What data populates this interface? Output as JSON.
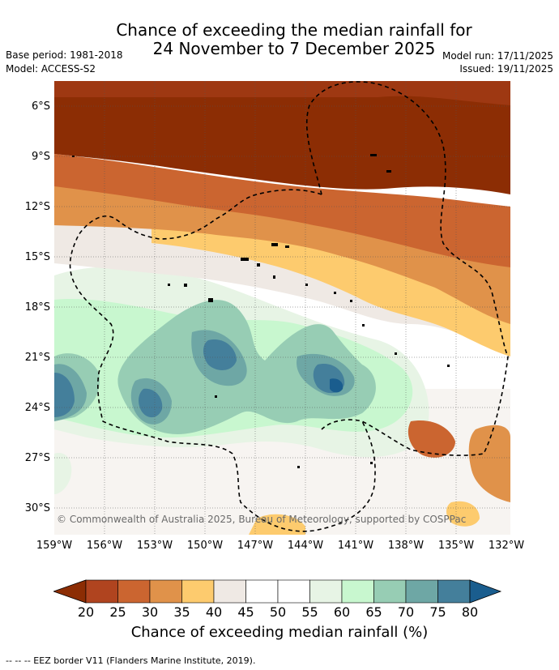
{
  "title": {
    "line1": "Chance of exceeding the median rainfall for",
    "line2": "24 November to 7 December 2025"
  },
  "meta": {
    "base_period": "Base period: 1981-2018",
    "model": "Model: ACCESS-S2",
    "model_run": "Model run: 17/11/2025",
    "issued": "Issued: 19/11/2025"
  },
  "lat_labels": [
    "6°S",
    "9°S",
    "12°S",
    "15°S",
    "18°S",
    "21°S",
    "24°S",
    "27°S",
    "30°S"
  ],
  "lon_labels": [
    "159°W",
    "156°W",
    "153°W",
    "150°W",
    "147°W",
    "144°W",
    "141°W",
    "138°W",
    "135°W",
    "132°W"
  ],
  "copyright": "© Commonwealth of Australia 2025, Bureau of Meteorology, supported by COSPPac",
  "colorbar": {
    "ticks": [
      "20",
      "25",
      "30",
      "35",
      "40",
      "45",
      "50",
      "55",
      "60",
      "65",
      "70",
      "75",
      "80"
    ],
    "colors": [
      "#8c2d04",
      "#b0441f",
      "#cb6530",
      "#e0924a",
      "#fdcb6e",
      "#efe9e4",
      "#ffffff",
      "#ffffff",
      "#e7f4e5",
      "#c8f7cf",
      "#97cdb4",
      "#6ea7a5",
      "#447f9b",
      "#1a5d8e"
    ],
    "title": "Chance of exceeding median rainfall (%)"
  },
  "eez_note": "--  --  -- EEZ border V11 (Flanders Marine Institute, 2019)."
}
